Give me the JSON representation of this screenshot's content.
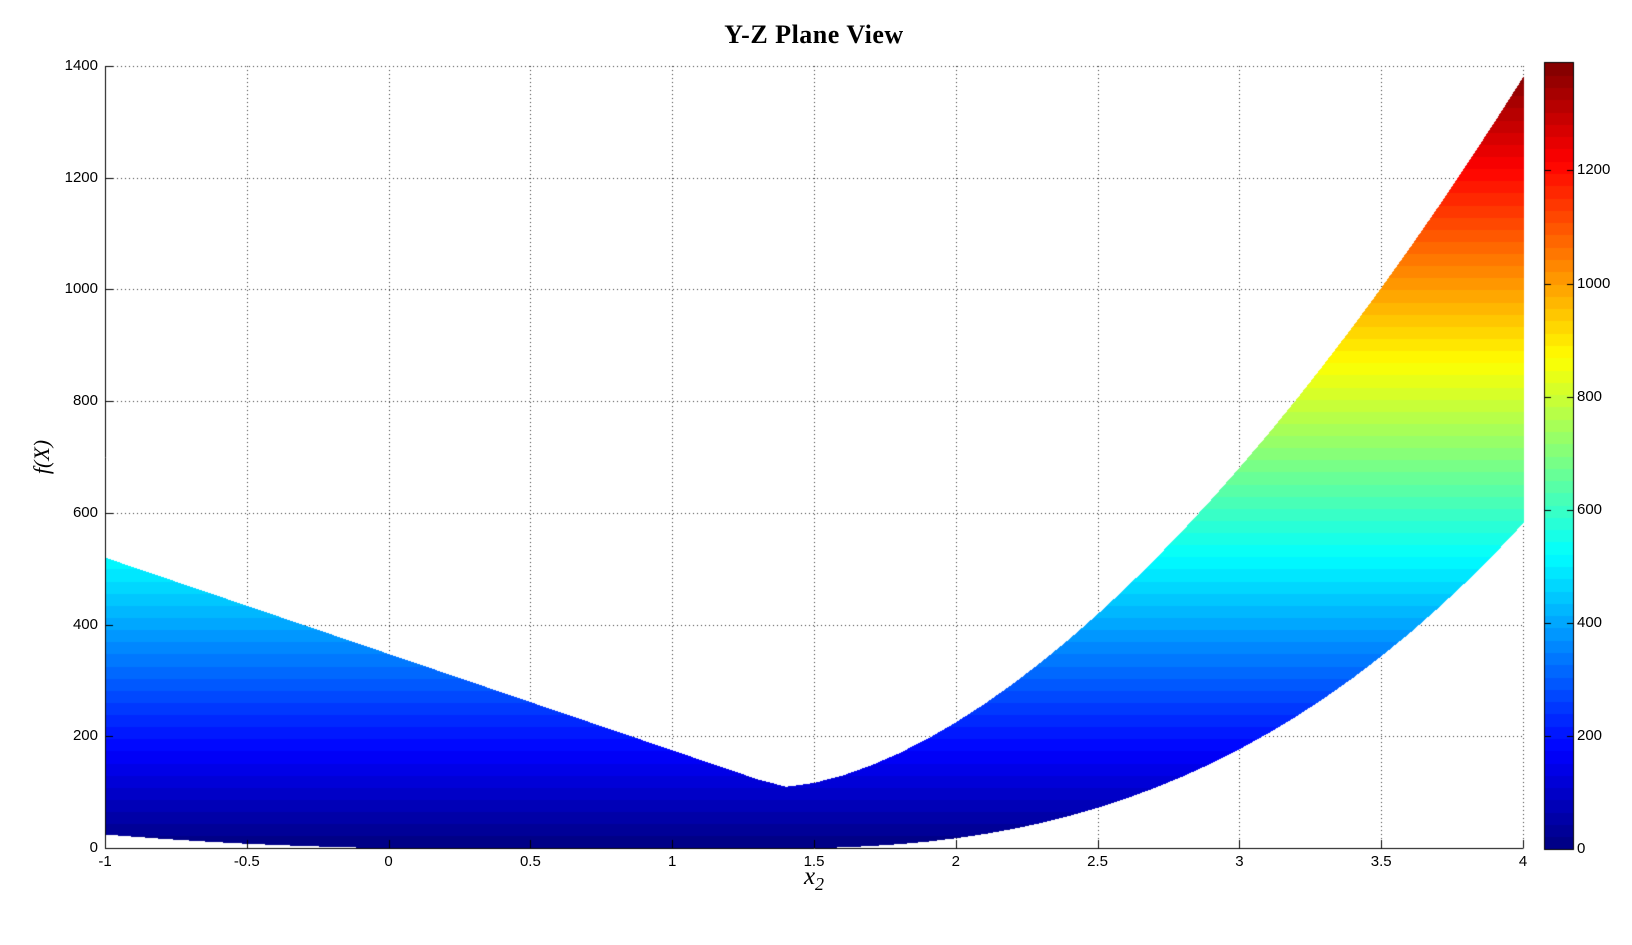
{
  "chart_data": {
    "type": "area",
    "title": "Y-Z Plane View",
    "xlabel_base": "x",
    "xlabel_sub": "2",
    "ylabel": "f(X)",
    "xlim": [
      -1,
      4
    ],
    "ylim": [
      0,
      1400
    ],
    "grid": true,
    "grid_style": "dotted",
    "legend": "none",
    "x_tick_labels": [
      "-1",
      "-0.5",
      "0",
      "0.5",
      "1",
      "1.5",
      "2",
      "2.5",
      "3",
      "3.5",
      "4"
    ],
    "x_tick_values": [
      -1,
      -0.5,
      0,
      0.5,
      1,
      1.5,
      2,
      2.5,
      3,
      3.5,
      4
    ],
    "y_tick_labels": [
      "0",
      "200",
      "400",
      "600",
      "800",
      "1000",
      "1200",
      "1400"
    ],
    "y_tick_values": [
      0,
      200,
      400,
      600,
      800,
      1000,
      1200,
      1400
    ],
    "colormap": "jet",
    "color_min": 0,
    "color_max": 1390,
    "color_levels": 64,
    "colorbar_tick_labels": [
      "0",
      "200",
      "400",
      "600",
      "800",
      "1000",
      "1200"
    ],
    "colorbar_tick_values": [
      0,
      200,
      400,
      600,
      800,
      1000,
      1200
    ],
    "band": {
      "comment_visible": "filled envelope of f(X) vs x2, colored by f value with jet colormap",
      "x": [
        -1.0,
        -0.9,
        -0.8,
        -0.7,
        -0.6,
        -0.5,
        -0.4,
        -0.3,
        -0.2,
        -0.1,
        0.0,
        0.1,
        0.2,
        0.3,
        0.4,
        0.5,
        0.6,
        0.7,
        0.8,
        0.9,
        1.0,
        1.1,
        1.2,
        1.3,
        1.4,
        1.5,
        1.6,
        1.7,
        1.8,
        1.9,
        2.0,
        2.1,
        2.2,
        2.3,
        2.4,
        2.5,
        2.6,
        2.7,
        2.8,
        2.9,
        3.0,
        3.1,
        3.2,
        3.3,
        3.4,
        3.5,
        3.6,
        3.7,
        3.8,
        3.9,
        4.0
      ],
      "upper": [
        520.6,
        503.3,
        486.1,
        468.8,
        451.6,
        434.3,
        417.1,
        399.8,
        382.6,
        365.3,
        348.1,
        330.8,
        313.6,
        296.3,
        279.1,
        261.8,
        244.6,
        227.3,
        210.1,
        192.8,
        175.6,
        158.3,
        141.1,
        123.8,
        110.4,
        117.6,
        130.8,
        148.8,
        170.9,
        196.8,
        226.2,
        259.0,
        294.8,
        333.8,
        375.5,
        420.2,
        467.5,
        517.4,
        570.0,
        625.0,
        682.4,
        742.2,
        804.4,
        869.0,
        935.5,
        1004.6,
        1075.8,
        1149.0,
        1224.6,
        1302.0,
        1381.6
      ],
      "lower": [
        25.1,
        21.1,
        17.4,
        14.1,
        11.1,
        8.5,
        6.3,
        4.4,
        2.8,
        1.6,
        0.7,
        0.2,
        0.0,
        0.0,
        0.0,
        0.0,
        0.0,
        0.0,
        0.0,
        0.0,
        0.0,
        0.0,
        0.0,
        0.0,
        0.1,
        0.7,
        2.1,
        4.4,
        7.8,
        12.4,
        18.4,
        25.9,
        35.0,
        45.8,
        58.5,
        73.0,
        89.7,
        108.4,
        129.3,
        152.5,
        178.1,
        206.3,
        236.8,
        270.0,
        305.9,
        344.7,
        386.2,
        430.7,
        478.2,
        528.6,
        582.6
      ]
    },
    "colors": {
      "background": "#ffffff",
      "axis": "#000000",
      "grid": "#333333",
      "text": "#000000"
    }
  }
}
